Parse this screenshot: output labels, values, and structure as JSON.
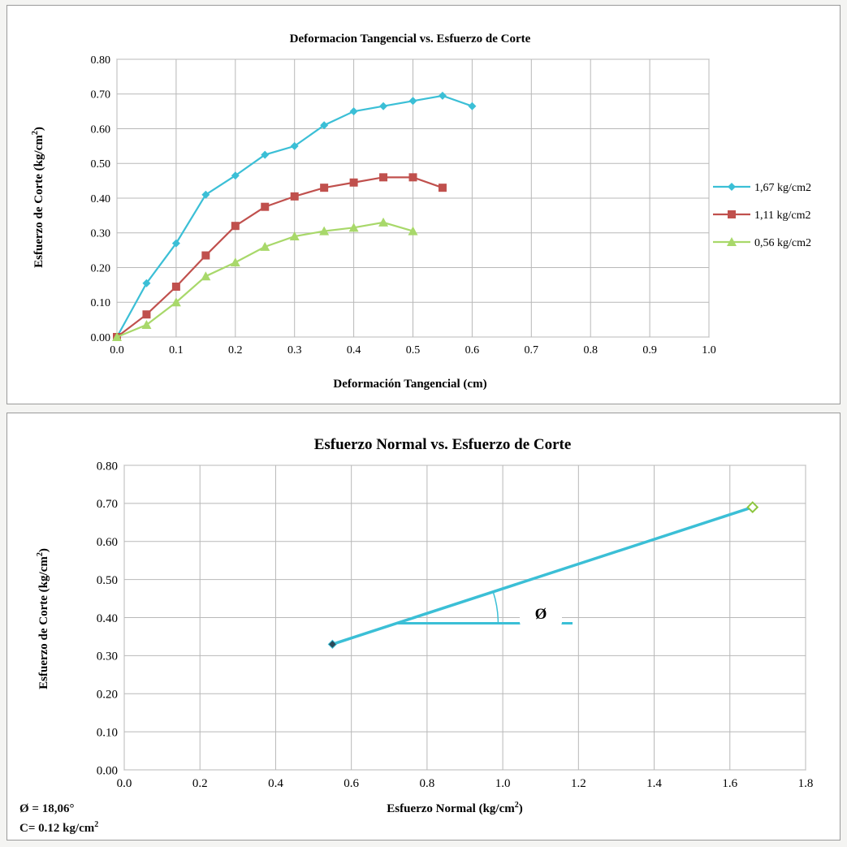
{
  "charts": [
    {
      "type": "line",
      "title": "Deformacion Tangencial vs. Esfuerzo de Corte",
      "xlabel": "Deformación Tangencial (cm)",
      "ylabel_main": "Esfuerzo de Corte (kg/cm",
      "ylabel_sup": "2",
      "ylabel_end": ")",
      "xlim": [
        0,
        1.0
      ],
      "ylim": [
        0,
        0.8
      ],
      "xticks": [
        "0.0",
        "0.1",
        "0.2",
        "0.3",
        "0.4",
        "0.5",
        "0.6",
        "0.7",
        "0.8",
        "0.9",
        "1.0"
      ],
      "yticks": [
        "0.00",
        "0.10",
        "0.20",
        "0.30",
        "0.40",
        "0.50",
        "0.60",
        "0.70",
        "0.80"
      ],
      "grid": true,
      "legend_position": "right",
      "series": [
        {
          "name": "1,67 kg/cm2",
          "color": "#3bbfd6",
          "marker": "diamond",
          "x": [
            0,
            0.05,
            0.1,
            0.15,
            0.2,
            0.25,
            0.3,
            0.35,
            0.4,
            0.45,
            0.5,
            0.55,
            0.6
          ],
          "y": [
            0.0,
            0.155,
            0.27,
            0.41,
            0.465,
            0.525,
            0.55,
            0.61,
            0.65,
            0.665,
            0.68,
            0.695,
            0.665
          ]
        },
        {
          "name": "1,11 kg/cm2",
          "color": "#c0504d",
          "marker": "square",
          "x": [
            0,
            0.05,
            0.1,
            0.15,
            0.2,
            0.25,
            0.3,
            0.35,
            0.4,
            0.45,
            0.5,
            0.55
          ],
          "y": [
            0.0,
            0.065,
            0.145,
            0.235,
            0.32,
            0.375,
            0.405,
            0.43,
            0.445,
            0.46,
            0.46,
            0.43
          ]
        },
        {
          "name": "0,56 kg/cm2",
          "color": "#a8d86a",
          "marker": "triangle",
          "x": [
            0,
            0.05,
            0.1,
            0.15,
            0.2,
            0.25,
            0.3,
            0.35,
            0.4,
            0.45,
            0.5
          ],
          "y": [
            0.0,
            0.035,
            0.1,
            0.175,
            0.215,
            0.26,
            0.29,
            0.305,
            0.315,
            0.33,
            0.305
          ]
        }
      ]
    },
    {
      "type": "scatter",
      "title": "Esfuerzo Normal vs. Esfuerzo de Corte",
      "xlabel_main": "Esfuerzo Normal (kg/cm",
      "xlabel_sup": "2",
      "xlabel_end": ")",
      "ylabel_main": "Esfuerzo de Corte (kg/cm",
      "ylabel_sup": "2",
      "ylabel_end": ")",
      "xlim": [
        0,
        1.8
      ],
      "ylim": [
        0,
        0.8
      ],
      "xticks": [
        "0.0",
        "0.2",
        "0.4",
        "0.6",
        "0.8",
        "1.0",
        "1.2",
        "1.4",
        "1.6",
        "1.8"
      ],
      "yticks": [
        "0.00",
        "0.10",
        "0.20",
        "0.30",
        "0.40",
        "0.50",
        "0.60",
        "0.70",
        "0.80"
      ],
      "grid": true,
      "line_color": "#3bbfd6",
      "points": [
        {
          "x": 0.55,
          "y": 0.33
        },
        {
          "x": 1.66,
          "y": 0.69
        }
      ],
      "angle_label": "Ø"
    }
  ],
  "results": {
    "phi": "Ø = 18,06°",
    "cohesion_main": "C= 0.12 kg/cm",
    "cohesion_sup": "2"
  }
}
